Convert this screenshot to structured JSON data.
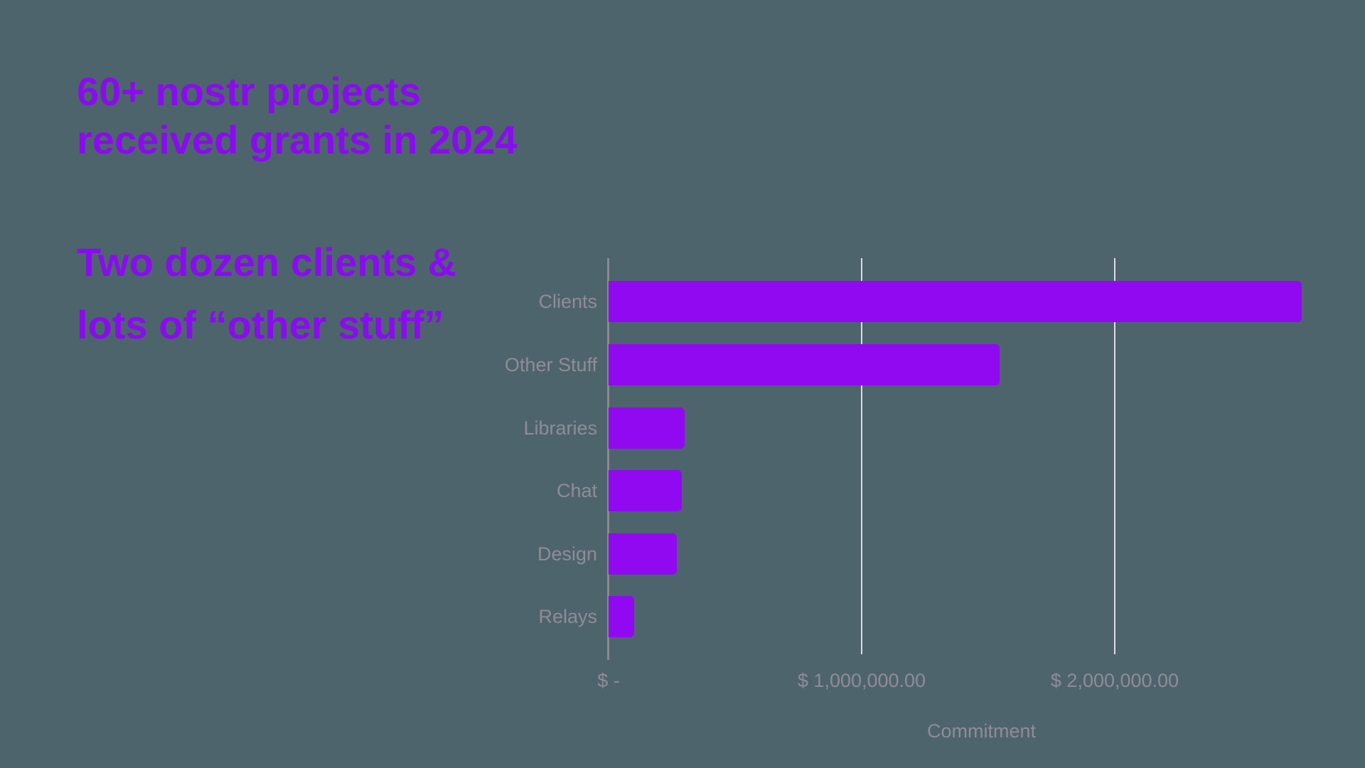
{
  "page": {
    "background_color": "#4E646C"
  },
  "title": {
    "line1": "60+ nostr projects",
    "line2": "received grants in 2024",
    "color": "#8A0BF0"
  },
  "subtitle": {
    "line1": "Two dozen clients &",
    "line2": "lots of “other stuff”",
    "color": "#8A0BF0"
  },
  "chart_data": {
    "type": "bar",
    "orientation": "horizontal",
    "categories": [
      "Clients",
      "Other Stuff",
      "Libraries",
      "Chat",
      "Design",
      "Relays"
    ],
    "values": [
      2740000,
      1545000,
      300000,
      290000,
      270000,
      100000
    ],
    "xlabel": "Commitment",
    "ylabel": "",
    "x_ticks": [
      {
        "value": 0,
        "label": "$ -"
      },
      {
        "value": 1000000,
        "label": "$ 1,000,000.00"
      },
      {
        "value": 2000000,
        "label": "$ 2,000,000.00"
      }
    ],
    "xlim": [
      0,
      2950000
    ],
    "grid": "vertical-only",
    "legend": "none",
    "bar_color": "#9109F0",
    "label_color": "#8F8C96",
    "gridline_color": "#DDD9E8",
    "axis_line_color": "#8A8A8F"
  }
}
